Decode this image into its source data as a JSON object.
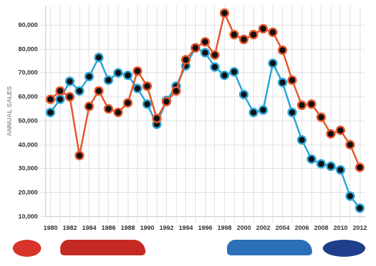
{
  "chart_data": {
    "type": "line",
    "y_label": "ANNUAL SALES",
    "categories": [
      1980,
      null,
      1982,
      null,
      1984,
      null,
      1986,
      null,
      1988,
      null,
      1990,
      null,
      1992,
      null,
      1994,
      null,
      1996,
      null,
      1998,
      null,
      2000,
      null,
      2002,
      null,
      2004,
      null,
      2006,
      null,
      2008,
      null,
      2010,
      null,
      2012
    ],
    "series": [
      {
        "color": "#e8562a",
        "marker": "circle",
        "values": [
          59000,
          62500,
          60000,
          35500,
          56000,
          62500,
          55000,
          53500,
          57500,
          70800,
          64500,
          51000,
          58000,
          62500,
          75500,
          80500,
          83000,
          77500,
          95000,
          86000,
          84000,
          86000,
          88500,
          87000,
          79500,
          67000,
          56500,
          57000,
          51500,
          44500,
          46000,
          40000,
          30500
        ]
      },
      {
        "color": "#2ba6d8",
        "marker": "circle",
        "values": [
          53500,
          59000,
          66500,
          62500,
          68500,
          76500,
          67000,
          70000,
          69000,
          63500,
          57000,
          48500,
          58500,
          64500,
          73000,
          80500,
          78500,
          72500,
          69000,
          70500,
          61000,
          53500,
          54500,
          74000,
          66000,
          53500,
          42000,
          34000,
          32000,
          31000,
          29500,
          18500,
          13500
        ]
      }
    ],
    "ylim": [
      10000,
      98000
    ],
    "yticks": [
      {
        "value": 10000,
        "label": "10,000"
      },
      {
        "value": 20000,
        "label": "20,000"
      },
      {
        "value": 30000,
        "label": "30,000"
      },
      {
        "value": 40000,
        "label": "40,000"
      },
      {
        "value": 50000,
        "label": "50,000"
      },
      {
        "value": 60000,
        "label": "60,000"
      },
      {
        "value": 70000,
        "label": "70,000"
      },
      {
        "value": 80000,
        "label": "80,000"
      },
      {
        "value": 90000,
        "label": "90,000"
      }
    ],
    "grid": true
  }
}
